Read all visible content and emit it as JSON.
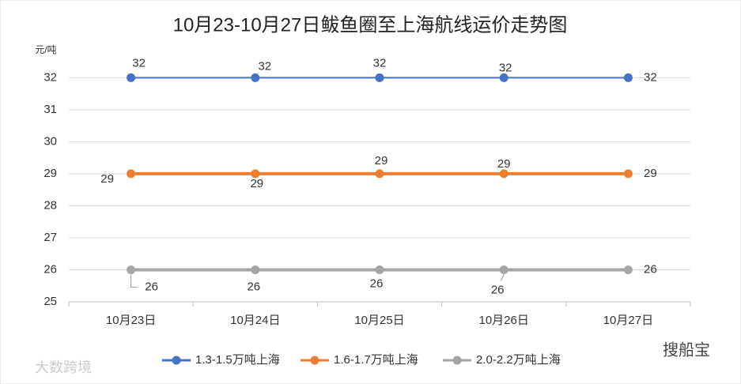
{
  "chart_data": {
    "type": "line",
    "title": "10月23-10月27日鲅鱼圈至上海航线运价走势图",
    "y_label": "元/吨",
    "categories": [
      "10月23日",
      "10月24日",
      "10月25日",
      "10月26日",
      "10月27日"
    ],
    "series": [
      {
        "name": "1.3-1.5万吨上海",
        "color": "#4472c4",
        "values": [
          32,
          32,
          32,
          32,
          32
        ]
      },
      {
        "name": "1.6-1.7万吨上海",
        "color": "#ed7d31",
        "values": [
          29,
          29,
          29,
          29,
          29
        ]
      },
      {
        "name": "2.0-2.2万吨上海",
        "color": "#a5a5a5",
        "values": [
          26,
          26,
          26,
          26,
          26
        ]
      }
    ],
    "ylim": [
      25,
      32.7
    ],
    "yticks": [
      25,
      26,
      27,
      28,
      29,
      30,
      31,
      32
    ],
    "grid": true,
    "legend": "bottom",
    "watermarks": [
      "大数跨境",
      "搜船宝"
    ]
  }
}
